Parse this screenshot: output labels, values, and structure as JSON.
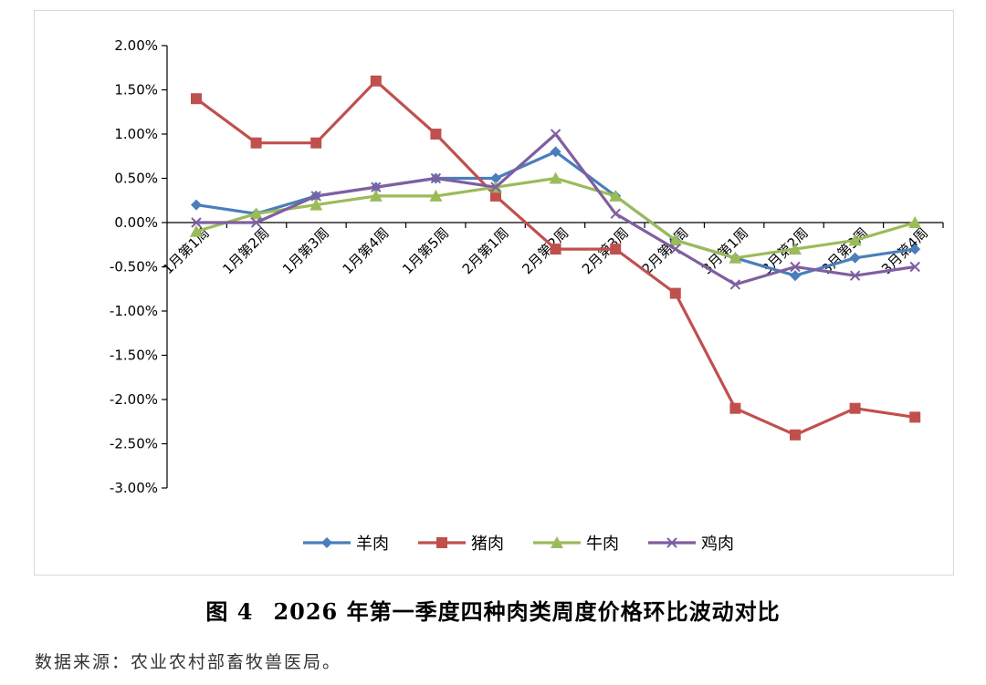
{
  "chart_data": {
    "type": "line",
    "categories": [
      "1月第1周",
      "1月第2周",
      "1月第3周",
      "1月第4周",
      "1月第5周",
      "2月第1周",
      "2月第2周",
      "2月第3周",
      "2月第4周",
      "3月第1周",
      "3月第2周",
      "3月第3周",
      "3月第4周"
    ],
    "ylim": [
      -3.0,
      2.0
    ],
    "yticks": [
      "2.00%",
      "1.50%",
      "1.00%",
      "0.50%",
      "0.00%",
      "-0.50%",
      "-1.00%",
      "-1.50%",
      "-2.00%",
      "-2.50%",
      "-3.00%"
    ],
    "ytick_values": [
      2.0,
      1.5,
      1.0,
      0.5,
      0.0,
      -0.5,
      -1.0,
      -1.5,
      -2.0,
      -2.5,
      -3.0
    ],
    "grid": false,
    "legend_position": "bottom",
    "series": [
      {
        "name": "羊肉",
        "color": "#4a7ebb",
        "marker": "diamond",
        "values": [
          0.2,
          0.1,
          0.3,
          0.4,
          0.5,
          0.5,
          0.8,
          0.3,
          -0.2,
          -0.4,
          -0.6,
          -0.4,
          -0.3
        ]
      },
      {
        "name": "猪肉",
        "color": "#c0504d",
        "marker": "square",
        "values": [
          1.4,
          0.9,
          0.9,
          1.6,
          1.0,
          0.3,
          -0.3,
          -0.3,
          -0.8,
          -2.1,
          -2.4,
          -2.1,
          -2.2
        ]
      },
      {
        "name": "牛肉",
        "color": "#9bbb59",
        "marker": "triangle",
        "values": [
          -0.1,
          0.1,
          0.2,
          0.3,
          0.3,
          0.4,
          0.5,
          0.3,
          -0.2,
          -0.4,
          -0.3,
          -0.2,
          0.0
        ]
      },
      {
        "name": "鸡肉",
        "color": "#7f5f9f",
        "marker": "x",
        "values": [
          0.0,
          0.0,
          0.3,
          0.4,
          0.5,
          0.4,
          1.0,
          0.1,
          -0.3,
          -0.7,
          -0.5,
          -0.6,
          -0.5
        ]
      }
    ]
  },
  "caption": {
    "figure_label": "图 4",
    "title": "2026 年第一季度四种肉类周度价格环比波动对比"
  },
  "source_note": "数据来源：农业农村部畜牧兽医局。"
}
